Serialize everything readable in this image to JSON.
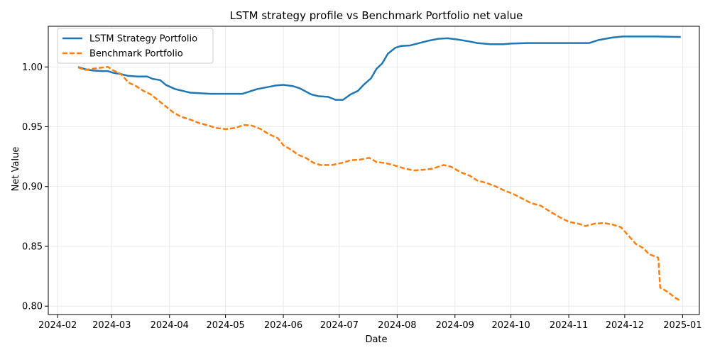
{
  "chart_data": {
    "type": "line",
    "title": "LSTM strategy profile vs Benchmark Portfolio net value",
    "xlabel": "Date",
    "ylabel": "Net Value",
    "xlim": [
      "2024-01-27",
      "2025-01-10"
    ],
    "ylim": [
      0.793,
      1.034
    ],
    "x_ticks": [
      "2024-02-01",
      "2024-03-01",
      "2024-04-01",
      "2024-05-01",
      "2024-06-01",
      "2024-07-01",
      "2024-08-01",
      "2024-09-01",
      "2024-10-01",
      "2024-11-01",
      "2024-12-01",
      "2025-01-01"
    ],
    "x_tick_labels": [
      "2024-02",
      "2024-03",
      "2024-04",
      "2024-05",
      "2024-06",
      "2024-07",
      "2024-08",
      "2024-09",
      "2024-10",
      "2024-11",
      "2024-12",
      "2025-01"
    ],
    "y_ticks": [
      0.8,
      0.85,
      0.9,
      0.95,
      1.0
    ],
    "y_tick_labels": [
      "0.80",
      "0.85",
      "0.90",
      "0.95",
      "1.00"
    ],
    "grid": true,
    "legend": {
      "placement": "top-left"
    },
    "series": [
      {
        "name": "LSTM Strategy Portfolio",
        "color": "#1f77b4",
        "style": "solid",
        "points": [
          [
            "2024-02-12",
            1.0
          ],
          [
            "2024-02-16",
            0.998
          ],
          [
            "2024-02-20",
            0.997
          ],
          [
            "2024-02-25",
            0.9965
          ],
          [
            "2024-02-28",
            0.9965
          ],
          [
            "2024-03-02",
            0.995
          ],
          [
            "2024-03-06",
            0.994
          ],
          [
            "2024-03-10",
            0.9925
          ],
          [
            "2024-03-15",
            0.992
          ],
          [
            "2024-03-20",
            0.992
          ],
          [
            "2024-03-23",
            0.99
          ],
          [
            "2024-03-27",
            0.989
          ],
          [
            "2024-03-30",
            0.985
          ],
          [
            "2024-04-04",
            0.9815
          ],
          [
            "2024-04-08",
            0.98
          ],
          [
            "2024-04-12",
            0.9785
          ],
          [
            "2024-04-18",
            0.978
          ],
          [
            "2024-04-23",
            0.9775
          ],
          [
            "2024-05-01",
            0.9775
          ],
          [
            "2024-05-10",
            0.9775
          ],
          [
            "2024-05-15",
            0.98
          ],
          [
            "2024-05-18",
            0.9815
          ],
          [
            "2024-05-23",
            0.983
          ],
          [
            "2024-05-28",
            0.9845
          ],
          [
            "2024-06-01",
            0.985
          ],
          [
            "2024-06-06",
            0.984
          ],
          [
            "2024-06-10",
            0.982
          ],
          [
            "2024-06-13",
            0.9795
          ],
          [
            "2024-06-16",
            0.977
          ],
          [
            "2024-06-20",
            0.9755
          ],
          [
            "2024-06-25",
            0.975
          ],
          [
            "2024-06-29",
            0.9725
          ],
          [
            "2024-07-03",
            0.9725
          ],
          [
            "2024-07-07",
            0.977
          ],
          [
            "2024-07-11",
            0.98
          ],
          [
            "2024-07-14",
            0.985
          ],
          [
            "2024-07-18",
            0.9905
          ],
          [
            "2024-07-21",
            0.9985
          ],
          [
            "2024-07-24",
            1.003
          ],
          [
            "2024-07-27",
            1.011
          ],
          [
            "2024-07-31",
            1.016
          ],
          [
            "2024-08-03",
            1.0175
          ],
          [
            "2024-08-08",
            1.018
          ],
          [
            "2024-08-13",
            1.02
          ],
          [
            "2024-08-18",
            1.022
          ],
          [
            "2024-08-23",
            1.0235
          ],
          [
            "2024-08-28",
            1.024
          ],
          [
            "2024-09-02",
            1.023
          ],
          [
            "2024-09-08",
            1.0215
          ],
          [
            "2024-09-13",
            1.02
          ],
          [
            "2024-09-20",
            1.019
          ],
          [
            "2024-09-27",
            1.019
          ],
          [
            "2024-10-01",
            1.0195
          ],
          [
            "2024-10-10",
            1.02
          ],
          [
            "2024-10-20",
            1.02
          ],
          [
            "2024-11-01",
            1.02
          ],
          [
            "2024-11-12",
            1.02
          ],
          [
            "2024-11-17",
            1.0225
          ],
          [
            "2024-11-24",
            1.0245
          ],
          [
            "2024-11-30",
            1.0255
          ],
          [
            "2024-12-10",
            1.0255
          ],
          [
            "2024-12-18",
            1.0255
          ],
          [
            "2024-12-31",
            1.025
          ]
        ]
      },
      {
        "name": "Benchmark Portfolio",
        "color": "#ff7f0e",
        "style": "dashed",
        "points": [
          [
            "2024-02-12",
            0.9995
          ],
          [
            "2024-02-16",
            0.9975
          ],
          [
            "2024-02-20",
            0.9985
          ],
          [
            "2024-02-25",
            0.9995
          ],
          [
            "2024-02-28",
            1.0
          ],
          [
            "2024-03-02",
            0.997
          ],
          [
            "2024-03-06",
            0.994
          ],
          [
            "2024-03-10",
            0.987
          ],
          [
            "2024-03-14",
            0.984
          ],
          [
            "2024-03-18",
            0.98
          ],
          [
            "2024-03-22",
            0.977
          ],
          [
            "2024-03-26",
            0.972
          ],
          [
            "2024-03-30",
            0.967
          ],
          [
            "2024-04-03",
            0.962
          ],
          [
            "2024-04-07",
            0.9585
          ],
          [
            "2024-04-12",
            0.956
          ],
          [
            "2024-04-17",
            0.953
          ],
          [
            "2024-04-22",
            0.951
          ],
          [
            "2024-04-26",
            0.949
          ],
          [
            "2024-05-01",
            0.948
          ],
          [
            "2024-05-06",
            0.949
          ],
          [
            "2024-05-11",
            0.9515
          ],
          [
            "2024-05-15",
            0.951
          ],
          [
            "2024-05-20",
            0.948
          ],
          [
            "2024-05-24",
            0.944
          ],
          [
            "2024-05-29",
            0.9405
          ],
          [
            "2024-06-01",
            0.9345
          ],
          [
            "2024-06-05",
            0.931
          ],
          [
            "2024-06-09",
            0.9265
          ],
          [
            "2024-06-13",
            0.924
          ],
          [
            "2024-06-17",
            0.92
          ],
          [
            "2024-06-21",
            0.918
          ],
          [
            "2024-06-27",
            0.918
          ],
          [
            "2024-07-03",
            0.92
          ],
          [
            "2024-07-07",
            0.922
          ],
          [
            "2024-07-12",
            0.9225
          ],
          [
            "2024-07-17",
            0.924
          ],
          [
            "2024-07-21",
            0.9205
          ],
          [
            "2024-07-26",
            0.9195
          ],
          [
            "2024-07-31",
            0.9175
          ],
          [
            "2024-08-05",
            0.915
          ],
          [
            "2024-08-10",
            0.9135
          ],
          [
            "2024-08-15",
            0.914
          ],
          [
            "2024-08-20",
            0.915
          ],
          [
            "2024-08-26",
            0.918
          ],
          [
            "2024-08-30",
            0.9165
          ],
          [
            "2024-09-04",
            0.912
          ],
          [
            "2024-09-09",
            0.909
          ],
          [
            "2024-09-13",
            0.905
          ],
          [
            "2024-09-18",
            0.903
          ],
          [
            "2024-09-23",
            0.9
          ],
          [
            "2024-09-27",
            0.897
          ],
          [
            "2024-10-02",
            0.894
          ],
          [
            "2024-10-07",
            0.89
          ],
          [
            "2024-10-12",
            0.886
          ],
          [
            "2024-10-17",
            0.884
          ],
          [
            "2024-10-22",
            0.879
          ],
          [
            "2024-10-27",
            0.8745
          ],
          [
            "2024-11-01",
            0.8705
          ],
          [
            "2024-11-06",
            0.869
          ],
          [
            "2024-11-10",
            0.867
          ],
          [
            "2024-11-15",
            0.869
          ],
          [
            "2024-11-20",
            0.8695
          ],
          [
            "2024-11-25",
            0.868
          ],
          [
            "2024-11-29",
            0.866
          ],
          [
            "2024-12-03",
            0.859
          ],
          [
            "2024-12-07",
            0.852
          ],
          [
            "2024-12-11",
            0.8485
          ],
          [
            "2024-12-14",
            0.8435
          ],
          [
            "2024-12-19",
            0.8405
          ],
          [
            "2024-12-20",
            0.8155
          ],
          [
            "2024-12-24",
            0.812
          ],
          [
            "2024-12-28",
            0.807
          ],
          [
            "2024-12-31",
            0.8045
          ]
        ]
      }
    ]
  }
}
